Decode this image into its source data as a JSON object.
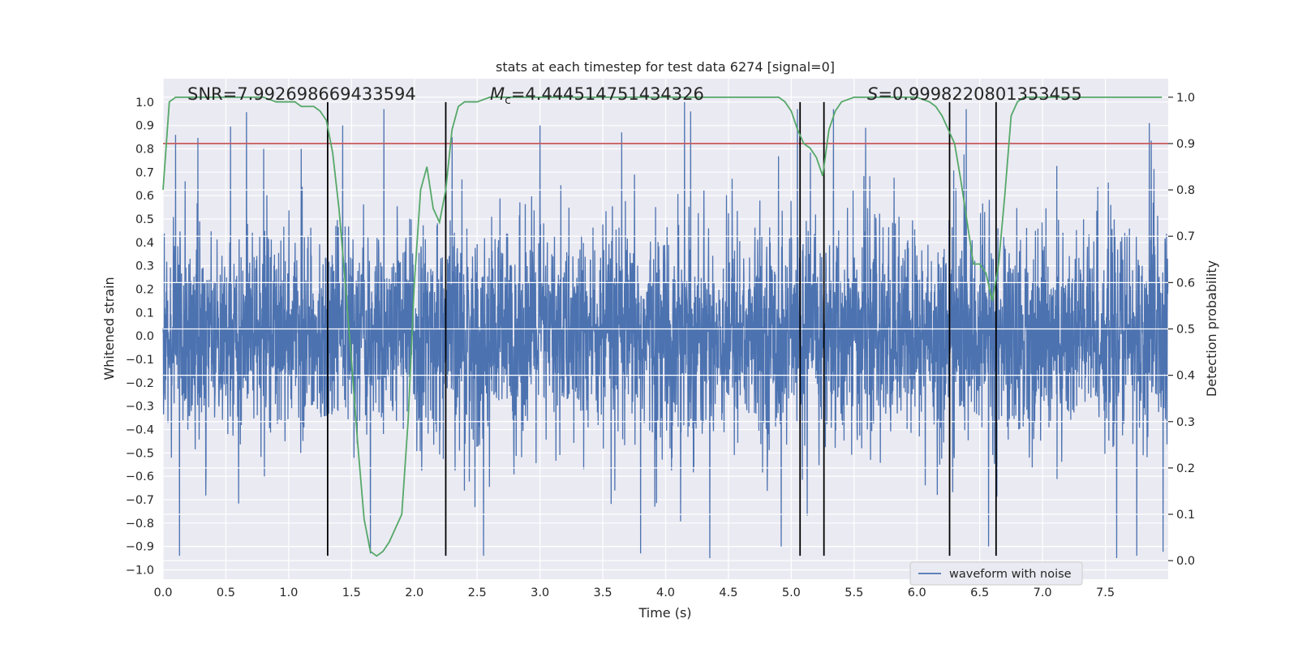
{
  "chart_data": {
    "type": "line",
    "title": "stats at each timestep for test data 6274 [signal=0]",
    "xlabel": "Time (s)",
    "ylabel": "Whitened strain",
    "y2label": "Detection probability",
    "xlim": [
      0,
      8
    ],
    "ylim": [
      -1.04,
      1.1
    ],
    "y2lim": [
      -0.04,
      1.04
    ],
    "xticks": [
      "0.0",
      "0.5",
      "1.0",
      "1.5",
      "2.0",
      "2.5",
      "3.0",
      "3.5",
      "4.0",
      "4.5",
      "5.0",
      "5.5",
      "6.0",
      "6.5",
      "7.0",
      "7.5"
    ],
    "yticks": [
      "−1.0",
      "−0.9",
      "−0.8",
      "−0.7",
      "−0.6",
      "−0.5",
      "−0.4",
      "−0.3",
      "−0.2",
      "−0.1",
      "0.0",
      "0.1",
      "0.2",
      "0.3",
      "0.4",
      "0.5",
      "0.6",
      "0.7",
      "0.8",
      "0.9",
      "1.0"
    ],
    "y2ticks": [
      "0.0",
      "0.1",
      "0.2",
      "0.3",
      "0.4",
      "0.5",
      "0.6",
      "0.7",
      "0.8",
      "0.9",
      "1.0"
    ],
    "grid": true,
    "annotations": {
      "snr": "SNR=7.992698669433594",
      "mc_symbol": "M",
      "mc_sub": "c",
      "mc_value": "=4.444514751434326",
      "s_symbol": "S",
      "s_value": "=0.9998220801353455"
    },
    "legend": {
      "placement": "lower-center",
      "label": "waveform with noise"
    },
    "series": [
      {
        "name": "waveform with noise",
        "color": "#4c72b0",
        "description_values": {
          "sample_rate_hz": 512,
          "duration_s": 8,
          "approx_peak_abs": 1.0,
          "notable_peaks": [
            {
              "x": 0.1,
              "y": 0.86
            },
            {
              "x": 0.13,
              "y": -0.94
            },
            {
              "x": 0.8,
              "y": 0.8
            },
            {
              "x": 1.1,
              "y": 0.8
            },
            {
              "x": 1.43,
              "y": 0.9
            },
            {
              "x": 1.65,
              "y": -0.93
            },
            {
              "x": 2.3,
              "y": 0.85
            },
            {
              "x": 2.55,
              "y": -0.94
            },
            {
              "x": 3.0,
              "y": 0.9
            },
            {
              "x": 3.65,
              "y": 0.87
            },
            {
              "x": 3.8,
              "y": -0.93
            },
            {
              "x": 4.15,
              "y": 1.0
            },
            {
              "x": 4.2,
              "y": 0.96
            },
            {
              "x": 4.92,
              "y": -0.9
            },
            {
              "x": 6.57,
              "y": -0.9
            },
            {
              "x": 7.75,
              "y": -0.94
            },
            {
              "x": 7.85,
              "y": 0.91
            }
          ]
        }
      },
      {
        "name": "",
        "color": "#55a868",
        "axis": "y2",
        "x": [
          0.0,
          0.05,
          0.1,
          0.15,
          0.2,
          0.3,
          0.4,
          0.5,
          0.6,
          0.7,
          0.8,
          0.9,
          1.0,
          1.05,
          1.1,
          1.2,
          1.25,
          1.3,
          1.35,
          1.4,
          1.45,
          1.5,
          1.55,
          1.6,
          1.65,
          1.7,
          1.75,
          1.8,
          1.85,
          1.9,
          1.95,
          2.0,
          2.05,
          2.1,
          2.15,
          2.2,
          2.25,
          2.3,
          2.35,
          2.4,
          2.5,
          2.6,
          2.7,
          2.8,
          3.0,
          3.5,
          4.0,
          4.5,
          4.8,
          4.9,
          4.95,
          5.0,
          5.05,
          5.1,
          5.15,
          5.2,
          5.25,
          5.3,
          5.35,
          5.4,
          5.5,
          5.6,
          5.8,
          6.0,
          6.1,
          6.15,
          6.2,
          6.25,
          6.3,
          6.35,
          6.4,
          6.45,
          6.5,
          6.55,
          6.6,
          6.65,
          6.7,
          6.75,
          6.8,
          6.85,
          7.0,
          7.5,
          7.8,
          7.95
        ],
        "values": [
          0.8,
          0.99,
          1.0,
          1.0,
          1.0,
          1.0,
          1.0,
          1.0,
          1.0,
          1.0,
          1.0,
          0.99,
          0.99,
          0.99,
          0.98,
          0.98,
          0.97,
          0.95,
          0.88,
          0.76,
          0.6,
          0.43,
          0.25,
          0.09,
          0.02,
          0.01,
          0.02,
          0.04,
          0.07,
          0.1,
          0.3,
          0.6,
          0.8,
          0.85,
          0.76,
          0.73,
          0.8,
          0.93,
          0.98,
          0.99,
          0.99,
          1.0,
          1.0,
          1.0,
          1.0,
          1.0,
          1.0,
          1.0,
          1.0,
          1.0,
          0.99,
          0.97,
          0.93,
          0.9,
          0.89,
          0.87,
          0.83,
          0.93,
          0.97,
          0.99,
          1.0,
          1.0,
          1.0,
          1.0,
          0.99,
          0.98,
          0.96,
          0.93,
          0.9,
          0.82,
          0.73,
          0.64,
          0.64,
          0.62,
          0.56,
          0.64,
          0.79,
          0.96,
          0.99,
          1.0,
          1.0,
          1.0,
          1.0,
          1.0
        ]
      }
    ],
    "threshold_line": {
      "axis": "y2",
      "value": 0.9,
      "color": "#c44e52"
    },
    "vertical_lines": {
      "color": "#000000",
      "x": [
        1.31,
        2.25,
        5.07,
        5.26,
        6.26,
        6.63
      ],
      "ymin": -0.94,
      "ymax": 1.0
    }
  }
}
